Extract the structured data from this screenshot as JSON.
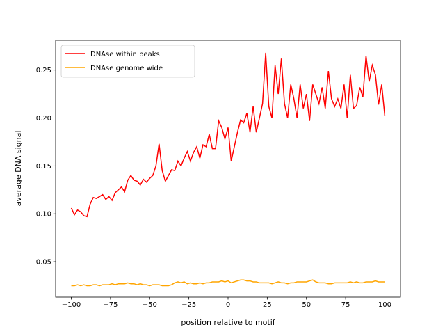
{
  "chart_data": {
    "type": "line",
    "xlabel": "position relative to motif",
    "ylabel": "average DNA signal",
    "x": [
      -100,
      -98,
      -96,
      -94,
      -92,
      -90,
      -88,
      -86,
      -84,
      -82,
      -80,
      -78,
      -76,
      -74,
      -72,
      -70,
      -68,
      -66,
      -64,
      -62,
      -60,
      -58,
      -56,
      -54,
      -52,
      -50,
      -48,
      -46,
      -44,
      -42,
      -40,
      -38,
      -36,
      -34,
      -32,
      -30,
      -28,
      -26,
      -24,
      -22,
      -20,
      -18,
      -16,
      -14,
      -12,
      -10,
      -8,
      -6,
      -4,
      -2,
      0,
      2,
      4,
      6,
      8,
      10,
      12,
      14,
      16,
      18,
      20,
      22,
      24,
      26,
      28,
      30,
      32,
      34,
      36,
      38,
      40,
      42,
      44,
      46,
      48,
      50,
      52,
      54,
      56,
      58,
      60,
      62,
      64,
      66,
      68,
      70,
      72,
      74,
      76,
      78,
      80,
      82,
      84,
      86,
      88,
      90,
      92,
      94,
      96,
      98,
      100
    ],
    "series": [
      {
        "name": "DNAse within peaks",
        "color": "#ff0000",
        "values": [
          0.106,
          0.099,
          0.104,
          0.102,
          0.098,
          0.097,
          0.11,
          0.117,
          0.116,
          0.118,
          0.12,
          0.115,
          0.118,
          0.114,
          0.122,
          0.125,
          0.128,
          0.123,
          0.135,
          0.14,
          0.135,
          0.134,
          0.13,
          0.136,
          0.133,
          0.137,
          0.14,
          0.15,
          0.173,
          0.145,
          0.134,
          0.14,
          0.146,
          0.145,
          0.155,
          0.15,
          0.158,
          0.165,
          0.155,
          0.164,
          0.17,
          0.158,
          0.172,
          0.17,
          0.183,
          0.168,
          0.168,
          0.197,
          0.19,
          0.178,
          0.19,
          0.155,
          0.17,
          0.185,
          0.198,
          0.195,
          0.205,
          0.185,
          0.212,
          0.185,
          0.2,
          0.215,
          0.268,
          0.212,
          0.2,
          0.255,
          0.225,
          0.262,
          0.215,
          0.2,
          0.235,
          0.22,
          0.2,
          0.235,
          0.21,
          0.225,
          0.197,
          0.235,
          0.225,
          0.215,
          0.232,
          0.21,
          0.249,
          0.22,
          0.212,
          0.22,
          0.21,
          0.235,
          0.2,
          0.245,
          0.21,
          0.213,
          0.232,
          0.222,
          0.265,
          0.238,
          0.255,
          0.245,
          0.214,
          0.235,
          0.202
        ]
      },
      {
        "name": "DNAse genome wide",
        "color": "#ffa500",
        "values": [
          0.025,
          0.025,
          0.026,
          0.025,
          0.026,
          0.025,
          0.025,
          0.026,
          0.026,
          0.025,
          0.026,
          0.026,
          0.026,
          0.027,
          0.026,
          0.027,
          0.027,
          0.027,
          0.028,
          0.027,
          0.027,
          0.026,
          0.027,
          0.026,
          0.026,
          0.025,
          0.026,
          0.026,
          0.026,
          0.025,
          0.025,
          0.025,
          0.026,
          0.028,
          0.029,
          0.028,
          0.029,
          0.027,
          0.028,
          0.027,
          0.027,
          0.028,
          0.027,
          0.028,
          0.028,
          0.029,
          0.029,
          0.029,
          0.03,
          0.029,
          0.03,
          0.028,
          0.029,
          0.03,
          0.031,
          0.031,
          0.03,
          0.03,
          0.029,
          0.029,
          0.028,
          0.028,
          0.028,
          0.028,
          0.027,
          0.028,
          0.029,
          0.028,
          0.028,
          0.027,
          0.028,
          0.028,
          0.029,
          0.029,
          0.029,
          0.029,
          0.03,
          0.031,
          0.029,
          0.028,
          0.028,
          0.028,
          0.027,
          0.027,
          0.028,
          0.028,
          0.028,
          0.028,
          0.028,
          0.029,
          0.028,
          0.029,
          0.028,
          0.028,
          0.029,
          0.029,
          0.029,
          0.03,
          0.029,
          0.029,
          0.029
        ]
      }
    ],
    "xlim": [
      -110,
      110
    ],
    "ylim": [
      0.013,
      0.281
    ],
    "xticks": [
      {
        "value": -100,
        "label": "−100"
      },
      {
        "value": -75,
        "label": "−75"
      },
      {
        "value": -50,
        "label": "−50"
      },
      {
        "value": -25,
        "label": "−25"
      },
      0,
      25,
      50,
      75,
      100
    ],
    "yticks": [
      0.05,
      {
        "value": 0.1,
        "label": "0.10"
      },
      0.15,
      {
        "value": 0.2,
        "label": "0.20"
      },
      0.25
    ],
    "legend": "upper left",
    "grid": false
  }
}
